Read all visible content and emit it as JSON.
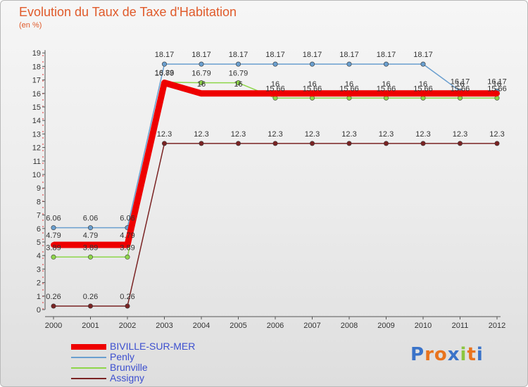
{
  "chart_data": {
    "type": "line",
    "title": "Evolution du Taux de Taxe d'Habitation",
    "ylabel": "(en %)",
    "xlabel": "",
    "x": [
      "2000",
      "2001",
      "2002",
      "2003",
      "2004",
      "2005",
      "2006",
      "2007",
      "2008",
      "2009",
      "2010",
      "2011",
      "2012"
    ],
    "ylim": [
      0,
      19
    ],
    "yticks": [
      "0",
      "1",
      "2",
      "3",
      "4",
      "5",
      "6",
      "7",
      "8",
      "9",
      "10",
      "11",
      "12",
      "13",
      "14",
      "15",
      "16",
      "17",
      "18",
      "19"
    ],
    "grid": false,
    "legend_position": "bottom-left",
    "series": [
      {
        "name": "BIVILLE-SUR-MER",
        "color": "#ee0000",
        "values": [
          4.79,
          4.79,
          4.79,
          16.79,
          16,
          16,
          16,
          16,
          16,
          16,
          16,
          16,
          16
        ],
        "labels": [
          "4.79",
          "4.79",
          "4.79",
          "16.79",
          "16",
          "16",
          "16",
          "16",
          "16",
          "16",
          "16",
          "16",
          "16"
        ]
      },
      {
        "name": "Penly",
        "color": "#6a9fcf",
        "values": [
          6.06,
          6.06,
          6.06,
          18.17,
          18.17,
          18.17,
          18.17,
          18.17,
          18.17,
          18.17,
          18.17,
          16.17,
          16.17
        ],
        "labels": [
          "6.06",
          "6.06",
          "6.06",
          "18.17",
          "18.17",
          "18.17",
          "18.17",
          "18.17",
          "18.17",
          "18.17",
          "18.17",
          "16.17",
          "16.17"
        ]
      },
      {
        "name": "Brunville",
        "color": "#8ed64a",
        "values": [
          3.89,
          3.89,
          3.89,
          16.83,
          16.79,
          16.79,
          15.66,
          15.66,
          15.66,
          15.66,
          15.66,
          15.66,
          15.66
        ],
        "labels": [
          "3.89",
          "3.89",
          "3.89",
          "16.83",
          "16.79",
          "16.79",
          "15.66",
          "15.66",
          "15.66",
          "15.66",
          "15.66",
          "15.66",
          "15.66"
        ]
      },
      {
        "name": "Assigny",
        "color": "#7a2323",
        "values": [
          0.26,
          0.26,
          0.26,
          12.3,
          12.3,
          12.3,
          12.3,
          12.3,
          12.3,
          12.3,
          12.3,
          12.3,
          12.3
        ],
        "labels": [
          "0.26",
          "0.26",
          "0.26",
          "12.3",
          "12.3",
          "12.3",
          "12.3",
          "12.3",
          "12.3",
          "12.3",
          "12.3",
          "12.3",
          "12.3"
        ]
      }
    ]
  },
  "brand": {
    "letters": [
      "P",
      "r",
      "o",
      "x",
      "i",
      "t",
      "i"
    ],
    "colors": [
      "#3a73c9",
      "#e8731e",
      "#e8731e",
      "#3a73c9",
      "#8cc63f",
      "#e8731e",
      "#3a73c9"
    ]
  }
}
